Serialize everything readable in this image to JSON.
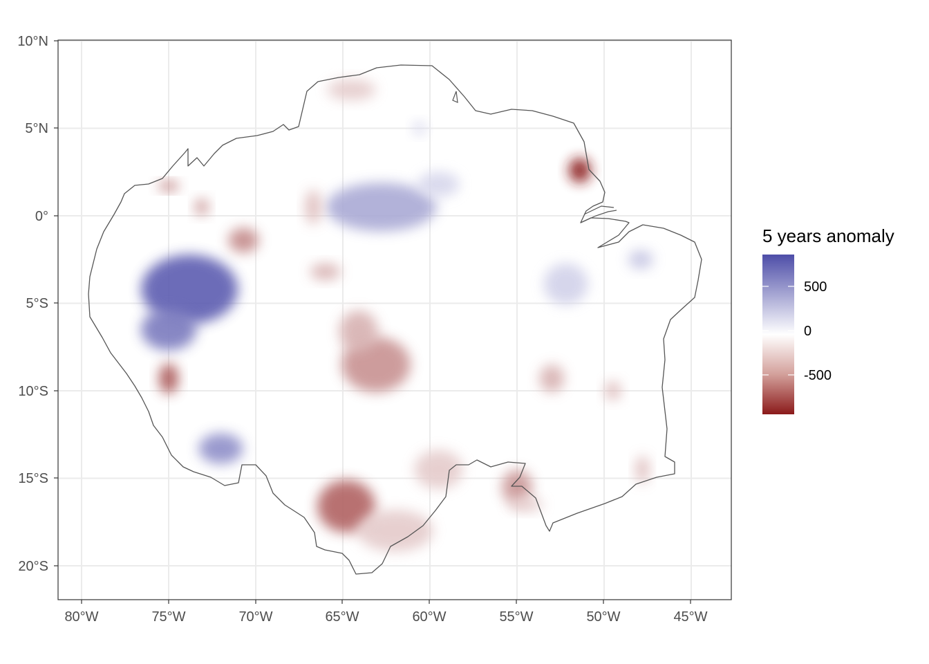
{
  "map": {
    "y_axis_labels": [
      "10°N",
      "5°N",
      "0°",
      "5°S",
      "10°S",
      "15°S",
      "20°S"
    ],
    "x_axis_labels": [
      "80°W",
      "75°W",
      "70°W",
      "65°W",
      "60°W",
      "55°W",
      "50°W",
      "45°W"
    ],
    "legend": {
      "title": "5 years anomaly",
      "labels": [
        "500",
        "0",
        "-500"
      ],
      "colors": {
        "positive": "#4d4da8",
        "neutral": "#ffffff",
        "negative": "#8b1a1a"
      }
    },
    "colors": {
      "panel_border": "#333333",
      "grid": "#ebebeb",
      "outline": "#555555"
    },
    "grid": true,
    "lon_range": [
      "81.5°W",
      "42.8°W"
    ],
    "lat_range": [
      "22°S",
      "10°N"
    ]
  },
  "chart_data": {
    "type": "heatmap",
    "title": "",
    "xlabel": "",
    "ylabel": "",
    "legend_title": "5 years anomaly",
    "value_range": [
      -900,
      900
    ],
    "legend_ticks": [
      500,
      0,
      -500
    ],
    "anomaly_areas": [
      {
        "lon": -73.8,
        "lat": -4.2,
        "value": 800
      },
      {
        "lon": -75.0,
        "lat": -6.5,
        "value": 650
      },
      {
        "lon": -62.8,
        "lat": 0.5,
        "value": 420
      },
      {
        "lon": -59.5,
        "lat": 1.8,
        "value": 200
      },
      {
        "lon": -72.0,
        "lat": -13.3,
        "value": 550
      },
      {
        "lon": -52.2,
        "lat": -3.9,
        "value": 220
      },
      {
        "lon": -47.9,
        "lat": -2.5,
        "value": 280
      },
      {
        "lon": -60.6,
        "lat": 5.0,
        "value": 180
      },
      {
        "lon": -63.1,
        "lat": -8.5,
        "value": -420
      },
      {
        "lon": -64.1,
        "lat": -6.6,
        "value": -300
      },
      {
        "lon": -64.8,
        "lat": -16.6,
        "value": -600
      },
      {
        "lon": -62.0,
        "lat": -18.0,
        "value": -200
      },
      {
        "lon": -59.5,
        "lat": -14.5,
        "value": -200
      },
      {
        "lon": -51.4,
        "lat": 2.6,
        "value": -900
      },
      {
        "lon": -70.7,
        "lat": -1.4,
        "value": -450
      },
      {
        "lon": -75.0,
        "lat": -9.3,
        "value": -650
      },
      {
        "lon": -75.0,
        "lat": 1.7,
        "value": -500
      },
      {
        "lon": -73.1,
        "lat": 0.5,
        "value": -400
      },
      {
        "lon": -64.5,
        "lat": 7.2,
        "value": -200
      },
      {
        "lon": -53.0,
        "lat": -9.3,
        "value": -300
      },
      {
        "lon": -55.0,
        "lat": -15.5,
        "value": -400
      },
      {
        "lon": -49.5,
        "lat": -10.0,
        "value": -250
      },
      {
        "lon": -66.7,
        "lat": 0.5,
        "value": -250
      },
      {
        "lon": -66.0,
        "lat": -3.2,
        "value": -300
      },
      {
        "lon": -54.5,
        "lat": -16.5,
        "value": -200
      },
      {
        "lon": -47.8,
        "lat": -14.5,
        "value": -250
      }
    ]
  }
}
